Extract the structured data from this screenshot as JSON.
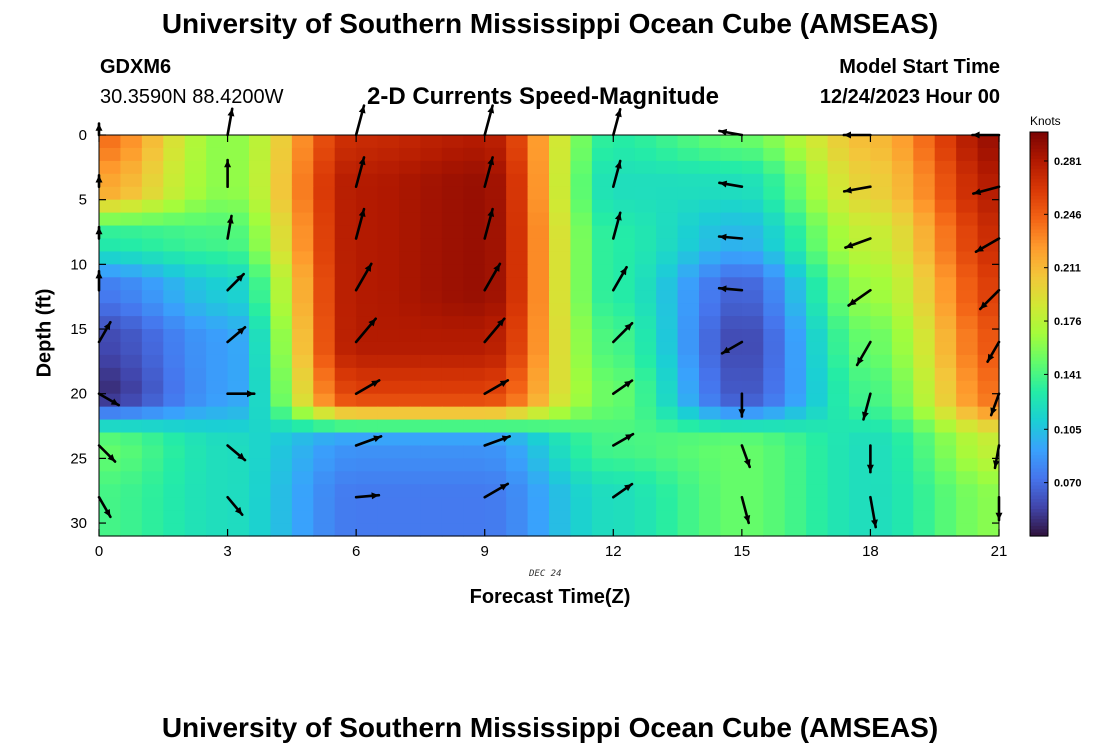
{
  "page": {
    "title_top": "University of Southern Mississippi Ocean Cube (AMSEAS)",
    "title_bottom": "University of Southern Mississippi Ocean Cube (AMSEAS)",
    "station_id": "GDXM6",
    "station_coords": "30.3590N  88.4200W",
    "plot_title": "2-D Currents Speed-Magnitude",
    "model_start_label": "Model Start Time",
    "model_start_value": "12/24/2023 Hour 00",
    "date_annotation": "DEC 24"
  },
  "colors": {
    "colormap": [
      "#30123b",
      "#4145ab",
      "#4675ed",
      "#39a2fc",
      "#1bcfd4",
      "#24eca6",
      "#61fc6c",
      "#a4fc3b",
      "#d1e834",
      "#f3c63a",
      "#fe9b2d",
      "#f36315",
      "#d93806",
      "#b11901",
      "#7a0403"
    ]
  },
  "chart_data": {
    "type": "heatmap",
    "title": "2-D Currents Speed-Magnitude",
    "xlabel": "Forecast Time(Z)",
    "ylabel": "Depth (ft)",
    "x_ticks": [
      0,
      3,
      6,
      9,
      12,
      15,
      18,
      21
    ],
    "y_ticks": [
      0,
      5,
      10,
      15,
      20,
      25,
      30
    ],
    "xlim": [
      0,
      21
    ],
    "ylim": [
      0,
      31
    ],
    "y_inverted": true,
    "colorbar": {
      "label": "Knots",
      "ticks": [
        "0.281",
        "0.246",
        "0.211",
        "0.176",
        "0.141",
        "0.105",
        "0.070"
      ],
      "tick_values": [
        0.281,
        0.246,
        0.211,
        0.176,
        0.141,
        0.105,
        0.07
      ],
      "range": [
        0.035,
        0.3
      ]
    },
    "hours": [
      0,
      3,
      6,
      9,
      12,
      15,
      18,
      21
    ],
    "depths": [
      0,
      4,
      8,
      12,
      16,
      20,
      24,
      28
    ],
    "speed_knots": [
      [
        0.24,
        0.16,
        0.27,
        0.28,
        0.13,
        0.15,
        0.21,
        0.29
      ],
      [
        0.22,
        0.16,
        0.28,
        0.29,
        0.12,
        0.12,
        0.2,
        0.28
      ],
      [
        0.13,
        0.14,
        0.28,
        0.29,
        0.13,
        0.1,
        0.18,
        0.27
      ],
      [
        0.075,
        0.11,
        0.28,
        0.29,
        0.13,
        0.065,
        0.165,
        0.26
      ],
      [
        0.055,
        0.09,
        0.28,
        0.28,
        0.14,
        0.055,
        0.15,
        0.25
      ],
      [
        0.045,
        0.09,
        0.26,
        0.26,
        0.15,
        0.06,
        0.14,
        0.24
      ],
      [
        0.15,
        0.12,
        0.085,
        0.085,
        0.14,
        0.15,
        0.12,
        0.18
      ],
      [
        0.14,
        0.12,
        0.075,
        0.075,
        0.12,
        0.15,
        0.12,
        0.16
      ]
    ],
    "arrow_direction_deg": [
      [
        90,
        80,
        75,
        75,
        75,
        170,
        180,
        180
      ],
      [
        90,
        90,
        75,
        75,
        75,
        170,
        190,
        195
      ],
      [
        90,
        80,
        75,
        75,
        75,
        175,
        200,
        210
      ],
      [
        90,
        45,
        60,
        60,
        60,
        175,
        215,
        225
      ],
      [
        60,
        40,
        50,
        50,
        45,
        210,
        240,
        240
      ],
      [
        330,
        0,
        30,
        30,
        35,
        270,
        255,
        250
      ],
      [
        315,
        320,
        20,
        20,
        30,
        290,
        270,
        260
      ],
      [
        300,
        310,
        5,
        30,
        35,
        285,
        280,
        270
      ]
    ],
    "arrow_relative_length": [
      [
        0.3,
        0.7,
        0.8,
        0.8,
        0.7,
        0.6,
        0.7,
        0.7
      ],
      [
        0.3,
        0.7,
        0.8,
        0.8,
        0.7,
        0.6,
        0.7,
        0.7
      ],
      [
        0.3,
        0.6,
        0.8,
        0.8,
        0.7,
        0.6,
        0.7,
        0.7
      ],
      [
        0.5,
        0.6,
        0.8,
        0.8,
        0.7,
        0.6,
        0.7,
        0.7
      ],
      [
        0.6,
        0.6,
        0.8,
        0.8,
        0.7,
        0.6,
        0.7,
        0.6
      ],
      [
        0.6,
        0.7,
        0.7,
        0.7,
        0.6,
        0.6,
        0.7,
        0.6
      ],
      [
        0.6,
        0.6,
        0.7,
        0.7,
        0.6,
        0.6,
        0.7,
        0.6
      ],
      [
        0.6,
        0.6,
        0.6,
        0.7,
        0.6,
        0.7,
        0.8,
        0.6
      ]
    ]
  }
}
